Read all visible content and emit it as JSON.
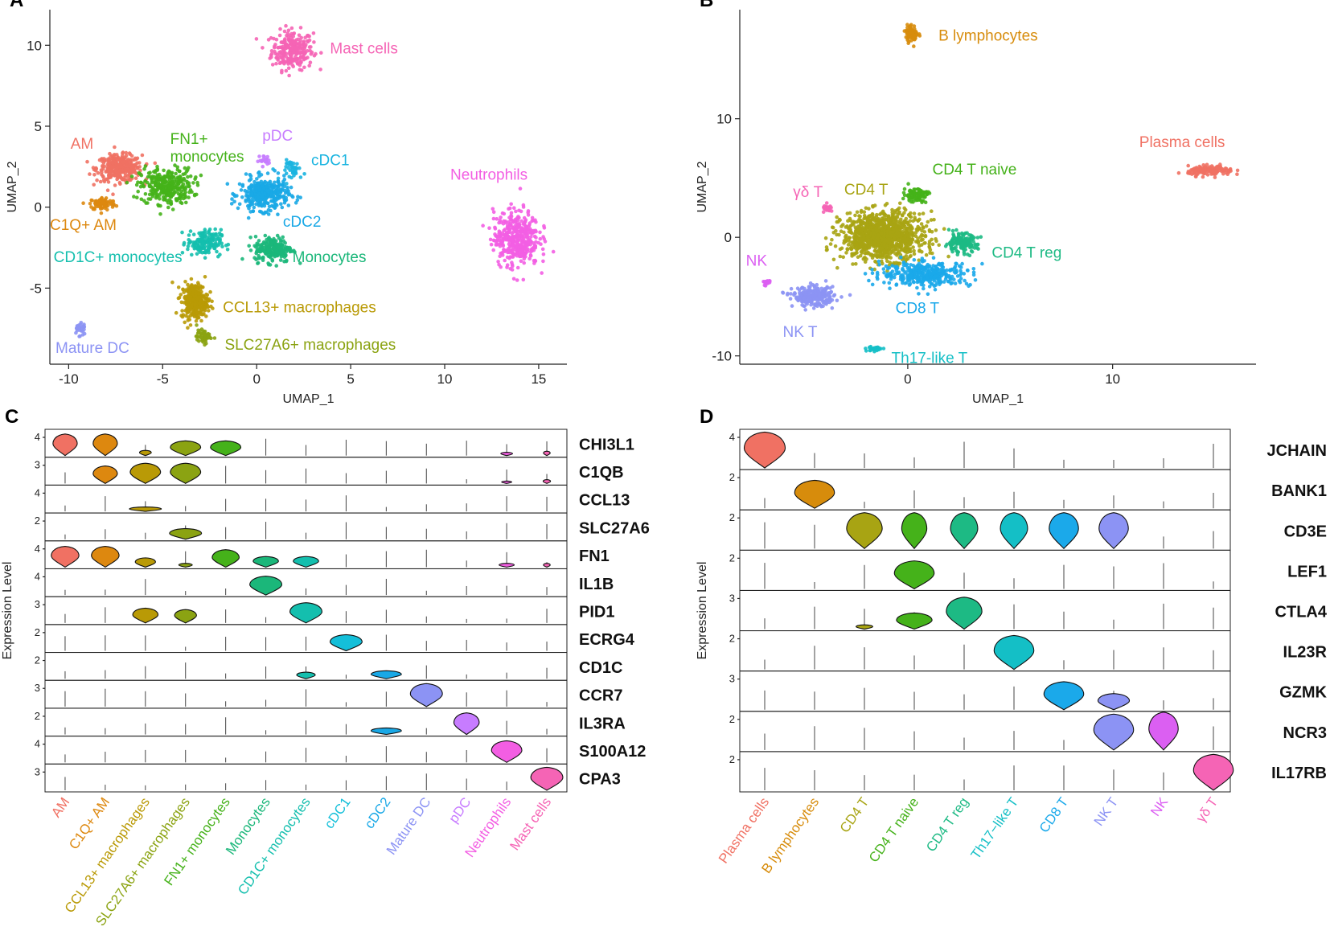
{
  "chart_data": [
    {
      "panel": "A",
      "type": "scatter",
      "xlabel": "UMAP_1",
      "ylabel": "UMAP_2",
      "xlim": [
        -11,
        16.5
      ],
      "ylim": [
        -9.7,
        12.2
      ],
      "xticks": [
        -10,
        -5,
        0,
        5,
        10,
        15
      ],
      "yticks": [
        -5,
        0,
        5,
        10
      ],
      "xtick_labels": [
        "-10",
        "-5",
        "0",
        "5",
        "10",
        "15"
      ],
      "ytick_labels": [
        "-5",
        "0",
        "5",
        "10"
      ],
      "clusters": [
        {
          "name": "Mast cells",
          "color": "#F564B5",
          "x": 1.9,
          "y": 9.7,
          "sx": 1.1,
          "sy": 1.2,
          "n": 260,
          "lx": 3.9,
          "ly": 9.5
        },
        {
          "name": "AM",
          "color": "#F07163",
          "x": -7.3,
          "y": 2.4,
          "sx": 1.2,
          "sy": 0.8,
          "n": 340,
          "lx": -9.9,
          "ly": 3.6
        },
        {
          "name": "C1Q+ AM",
          "color": "#DD880F",
          "x": -8.2,
          "y": 0.2,
          "sx": 0.7,
          "sy": 0.4,
          "n": 90,
          "lx": -11.0,
          "ly": -1.4
        },
        {
          "name": "FN1+ monocytes",
          "color": "#45B21A",
          "x": -4.8,
          "y": 1.3,
          "sx": 1.4,
          "sy": 1.1,
          "n": 330,
          "lx": -4.6,
          "ly": 3.9
        },
        {
          "name": "pDC",
          "color": "#C77CFF",
          "x": 0.4,
          "y": 2.9,
          "sx": 0.3,
          "sy": 0.3,
          "n": 20,
          "lx": 0.3,
          "ly": 4.1
        },
        {
          "name": "cDC1",
          "color": "#19B4E0",
          "x": 2.0,
          "y": 2.3,
          "sx": 0.6,
          "sy": 0.6,
          "n": 40,
          "lx": 2.9,
          "ly": 2.6
        },
        {
          "name": "cDC2",
          "color": "#19A8E6",
          "x": 0.4,
          "y": 0.8,
          "sx": 1.3,
          "sy": 1.0,
          "n": 340,
          "lx": 1.4,
          "ly": -1.2
        },
        {
          "name": "CD1C+ monocytes",
          "color": "#14BFAE",
          "x": -2.8,
          "y": -2.2,
          "sx": 0.9,
          "sy": 0.8,
          "n": 170,
          "lx": -10.8,
          "ly": -3.4
        },
        {
          "name": "Monocytes",
          "color": "#1BB77A",
          "x": 0.9,
          "y": -2.6,
          "sx": 1.0,
          "sy": 0.8,
          "n": 210,
          "lx": 1.9,
          "ly": -3.4
        },
        {
          "name": "CCL13+ macrophages",
          "color": "#B99A06",
          "x": -3.3,
          "y": -5.8,
          "sx": 0.7,
          "sy": 1.1,
          "n": 310,
          "lx": -1.8,
          "ly": -6.5
        },
        {
          "name": "SLC27A6+ macrophages",
          "color": "#8BA312",
          "x": -2.8,
          "y": -8.0,
          "sx": 0.4,
          "sy": 0.4,
          "n": 60,
          "lx": -1.7,
          "ly": -8.8
        },
        {
          "name": "Neutrophils",
          "color": "#F35EE3",
          "x": 13.8,
          "y": -1.9,
          "sx": 1.2,
          "sy": 1.7,
          "n": 420,
          "lx": 10.3,
          "ly": 1.7
        },
        {
          "name": "Mature DC",
          "color": "#8C93F4",
          "x": -9.4,
          "y": -7.5,
          "sx": 0.3,
          "sy": 0.5,
          "n": 30,
          "lx": -10.7,
          "ly": -9.0
        }
      ]
    },
    {
      "panel": "B",
      "type": "scatter",
      "xlabel": "UMAP_1",
      "ylabel": "UMAP_2",
      "xlim": [
        -8.2,
        17
      ],
      "ylim": [
        -10.7,
        19.2
      ],
      "xticks": [
        0,
        10
      ],
      "yticks": [
        -10,
        0,
        10
      ],
      "xtick_labels": [
        "0",
        "10"
      ],
      "ytick_labels": [
        "-10",
        "0",
        "10"
      ],
      "clusters": [
        {
          "name": "B lymphocytes",
          "color": "#D78C0C",
          "x": 0.2,
          "y": 17.2,
          "sx": 0.3,
          "sy": 0.7,
          "n": 80,
          "lx": 1.5,
          "ly": 16.6
        },
        {
          "name": "Plasma cells",
          "color": "#F07163",
          "x": 14.8,
          "y": 5.6,
          "sx": 1.1,
          "sy": 0.4,
          "n": 140,
          "lx": 11.3,
          "ly": 7.6
        },
        {
          "name": "γδ T",
          "color": "#F564B5",
          "x": -3.9,
          "y": 2.4,
          "sx": 0.25,
          "sy": 0.3,
          "n": 25,
          "lx": -5.6,
          "ly": 3.4
        },
        {
          "name": "CD4 T",
          "color": "#A8A413",
          "x": -1.2,
          "y": 0.1,
          "sx": 2.0,
          "sy": 2.0,
          "n": 1100,
          "lx": -3.1,
          "ly": 3.6
        },
        {
          "name": "CD4 T naive",
          "color": "#45B21A",
          "x": 0.4,
          "y": 3.6,
          "sx": 0.6,
          "sy": 0.6,
          "n": 90,
          "lx": 1.2,
          "ly": 5.3
        },
        {
          "name": "CD4 T reg",
          "color": "#1DBA84",
          "x": 2.6,
          "y": -0.5,
          "sx": 0.8,
          "sy": 0.8,
          "n": 150,
          "lx": 4.1,
          "ly": -1.7
        },
        {
          "name": "NK",
          "color": "#DB5FF2",
          "x": -6.9,
          "y": -3.8,
          "sx": 0.2,
          "sy": 0.3,
          "n": 20,
          "lx": -7.9,
          "ly": -2.4
        },
        {
          "name": "CD8 T",
          "color": "#1BA9EA",
          "x": 0.9,
          "y": -3.1,
          "sx": 2.2,
          "sy": 1.0,
          "n": 360,
          "lx": -0.6,
          "ly": -6.4
        },
        {
          "name": "NK T",
          "color": "#8C93F4",
          "x": -4.6,
          "y": -5.0,
          "sx": 1.0,
          "sy": 0.8,
          "n": 260,
          "lx": -6.1,
          "ly": -8.4
        },
        {
          "name": "Th17-like T",
          "color": "#14BFC6",
          "x": -1.6,
          "y": -9.4,
          "sx": 0.4,
          "sy": 0.2,
          "n": 30,
          "lx": -0.8,
          "ly": -10.6
        }
      ]
    },
    {
      "panel": "C",
      "type": "violin",
      "ylabel": "Expression Level",
      "categories": [
        "AM",
        "C1Q+ AM",
        "CCL13+ macrophages",
        "SLC27A6+ macrophages",
        "FN1+ monocytes",
        "Monocytes",
        "CD1C+ monocytes",
        "cDC1",
        "cDC2",
        "Mature DC",
        "pDC",
        "Neutrophils",
        "Mast cells"
      ],
      "colors": [
        "#F07163",
        "#DD880F",
        "#B99A06",
        "#8BA312",
        "#45B21A",
        "#1BB77A",
        "#14BFAE",
        "#14BFD9",
        "#19A8E6",
        "#8C93F4",
        "#C77CFF",
        "#F35EE3",
        "#F564B5"
      ],
      "genes": [
        {
          "name": "CHI3L1",
          "ytick": "4",
          "violins": [
            [
              0,
              0.85,
              0.72
            ],
            [
              1,
              0.85,
              0.72
            ],
            [
              2,
              0.25,
              0.35
            ],
            [
              3,
              0.6,
              0.9
            ],
            [
              4,
              0.6,
              0.9
            ],
            [
              11,
              0.18,
              0.35
            ],
            [
              12,
              0.22,
              0.2
            ]
          ]
        },
        {
          "name": "C1QB",
          "ytick": "3",
          "violins": [
            [
              1,
              0.7,
              0.72
            ],
            [
              2,
              0.8,
              0.9
            ],
            [
              3,
              0.8,
              0.9
            ],
            [
              11,
              0.15,
              0.3
            ],
            [
              12,
              0.2,
              0.22
            ]
          ]
        },
        {
          "name": "CCL13",
          "ytick": "4",
          "violins": [
            [
              2,
              0.22,
              0.95
            ]
          ]
        },
        {
          "name": "SLC27A6",
          "ytick": "2",
          "violins": [
            [
              3,
              0.45,
              0.95
            ]
          ]
        },
        {
          "name": "FN1",
          "ytick": "4",
          "violins": [
            [
              0,
              0.82,
              0.82
            ],
            [
              1,
              0.82,
              0.82
            ],
            [
              2,
              0.4,
              0.6
            ],
            [
              3,
              0.2,
              0.4
            ],
            [
              4,
              0.7,
              0.8
            ],
            [
              5,
              0.45,
              0.75
            ],
            [
              6,
              0.45,
              0.75
            ],
            [
              11,
              0.2,
              0.45
            ],
            [
              12,
              0.2,
              0.2
            ]
          ]
        },
        {
          "name": "IL1B",
          "ytick": "4",
          "violins": [
            [
              5,
              0.75,
              0.95
            ]
          ]
        },
        {
          "name": "PID1",
          "ytick": "3",
          "violins": [
            [
              2,
              0.6,
              0.75
            ],
            [
              3,
              0.55,
              0.65
            ],
            [
              6,
              0.8,
              0.95
            ]
          ]
        },
        {
          "name": "ECRG4",
          "ytick": "2",
          "violins": [
            [
              7,
              0.65,
              0.95
            ]
          ]
        },
        {
          "name": "CD1C",
          "ytick": "2",
          "violins": [
            [
              6,
              0.3,
              0.55
            ],
            [
              8,
              0.35,
              0.9
            ]
          ]
        },
        {
          "name": "CCR7",
          "ytick": "3",
          "violins": [
            [
              9,
              0.9,
              0.95
            ]
          ]
        },
        {
          "name": "IL3RA",
          "ytick": "2",
          "violins": [
            [
              8,
              0.3,
              0.9
            ],
            [
              10,
              0.85,
              0.75
            ]
          ]
        },
        {
          "name": "S100A12",
          "ytick": "4",
          "violins": [
            [
              11,
              0.85,
              0.9
            ]
          ]
        },
        {
          "name": "CPA3",
          "ytick": "3",
          "violins": [
            [
              12,
              0.9,
              0.95
            ]
          ]
        }
      ]
    },
    {
      "panel": "D",
      "type": "violin",
      "ylabel": "Expression Level",
      "categories": [
        "Plasma cells",
        "B lymphocytes",
        "CD4 T",
        "CD4 T naive",
        "CD4 T reg",
        "Th17−like T",
        "CD8 T",
        "NK T",
        "NK",
        "γδ T"
      ],
      "colors": [
        "#F07163",
        "#D78C0C",
        "#A8A413",
        "#45B21A",
        "#1DBA84",
        "#14BFC6",
        "#1BA9EA",
        "#8C93F4",
        "#DB5FF2",
        "#F564B5"
      ],
      "genes": [
        {
          "name": "JCHAIN",
          "ytick": "4",
          "violins": [
            [
              0,
              0.95,
              0.98
            ]
          ]
        },
        {
          "name": "BANK1",
          "ytick": "2",
          "violins": [
            [
              1,
              0.75,
              0.95
            ]
          ]
        },
        {
          "name": "CD3E",
          "ytick": "2",
          "violins": [
            [
              2,
              0.95,
              0.85
            ],
            [
              3,
              0.95,
              0.6
            ],
            [
              4,
              0.95,
              0.65
            ],
            [
              5,
              0.95,
              0.65
            ],
            [
              6,
              0.95,
              0.7
            ],
            [
              7,
              0.95,
              0.7
            ]
          ]
        },
        {
          "name": "LEF1",
          "ytick": "2",
          "violins": [
            [
              3,
              0.75,
              0.95
            ]
          ]
        },
        {
          "name": "CTLA4",
          "ytick": "3",
          "violins": [
            [
              2,
              0.15,
              0.4
            ],
            [
              3,
              0.45,
              0.85
            ],
            [
              4,
              0.85,
              0.85
            ]
          ]
        },
        {
          "name": "IL23R",
          "ytick": "2",
          "violins": [
            [
              5,
              0.9,
              0.95
            ]
          ]
        },
        {
          "name": "GZMK",
          "ytick": "3",
          "violins": [
            [
              6,
              0.75,
              0.95
            ],
            [
              7,
              0.45,
              0.75
            ]
          ]
        },
        {
          "name": "NCR3",
          "ytick": "2",
          "violins": [
            [
              7,
              0.95,
              0.95
            ],
            [
              8,
              1.0,
              0.7
            ]
          ]
        },
        {
          "name": "IL17RB",
          "ytick": "2",
          "violins": [
            [
              9,
              0.95,
              0.95
            ]
          ]
        }
      ]
    }
  ]
}
